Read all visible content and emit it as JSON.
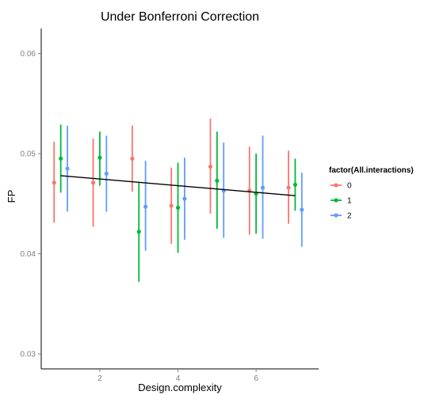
{
  "chart_data": {
    "type": "scatter",
    "title": "Under Bonferroni Correction",
    "xlabel": "Design.complexity",
    "ylabel": "FP",
    "xlim": [
      0.5,
      7.6
    ],
    "ylim": [
      0.0285,
      0.0625
    ],
    "x_ticks": [
      2,
      4,
      6
    ],
    "x_tick_labels": [
      "2",
      "4",
      "6"
    ],
    "y_ticks": [
      0.03,
      0.04,
      0.05,
      0.06
    ],
    "y_tick_labels": [
      "0.03",
      "0.04",
      "0.05",
      "0.06"
    ],
    "grid": false,
    "legend": {
      "title": "factor(All.interactions)",
      "placement": "right",
      "entries": [
        "0",
        "1",
        "2"
      ]
    },
    "series": [
      {
        "name": "0",
        "color": "#F8766D",
        "points": [
          {
            "x": 1,
            "y": 0.0471,
            "lo": 0.0431,
            "hi": 0.0512
          },
          {
            "x": 2,
            "y": 0.0471,
            "lo": 0.0427,
            "hi": 0.0515
          },
          {
            "x": 3,
            "y": 0.0495,
            "lo": 0.0462,
            "hi": 0.0528
          },
          {
            "x": 4,
            "y": 0.0448,
            "lo": 0.041,
            "hi": 0.0486
          },
          {
            "x": 5,
            "y": 0.0487,
            "lo": 0.044,
            "hi": 0.0535
          },
          {
            "x": 6,
            "y": 0.0463,
            "lo": 0.0419,
            "hi": 0.0507
          },
          {
            "x": 7,
            "y": 0.0466,
            "lo": 0.043,
            "hi": 0.0503
          }
        ]
      },
      {
        "name": "1",
        "color": "#00BA38",
        "points": [
          {
            "x": 1,
            "y": 0.0495,
            "lo": 0.0461,
            "hi": 0.0529
          },
          {
            "x": 2,
            "y": 0.0496,
            "lo": 0.0468,
            "hi": 0.0522
          },
          {
            "x": 3,
            "y": 0.0422,
            "lo": 0.0372,
            "hi": 0.0471
          },
          {
            "x": 4,
            "y": 0.0446,
            "lo": 0.0401,
            "hi": 0.0491
          },
          {
            "x": 5,
            "y": 0.0473,
            "lo": 0.0425,
            "hi": 0.0522
          },
          {
            "x": 6,
            "y": 0.046,
            "lo": 0.042,
            "hi": 0.05
          },
          {
            "x": 7,
            "y": 0.0469,
            "lo": 0.0443,
            "hi": 0.0495
          }
        ]
      },
      {
        "name": "2",
        "color": "#619CFF",
        "points": [
          {
            "x": 1,
            "y": 0.0485,
            "lo": 0.0442,
            "hi": 0.0528
          },
          {
            "x": 2,
            "y": 0.048,
            "lo": 0.0442,
            "hi": 0.0518
          },
          {
            "x": 3,
            "y": 0.0447,
            "lo": 0.0403,
            "hi": 0.0493
          },
          {
            "x": 4,
            "y": 0.0455,
            "lo": 0.0414,
            "hi": 0.0496
          },
          {
            "x": 5,
            "y": 0.0463,
            "lo": 0.0416,
            "hi": 0.0511
          },
          {
            "x": 6,
            "y": 0.0466,
            "lo": 0.0415,
            "hi": 0.0518
          },
          {
            "x": 7,
            "y": 0.0444,
            "lo": 0.0407,
            "hi": 0.0481
          }
        ]
      }
    ],
    "trend_line": {
      "color": "#000000",
      "x": [
        1,
        7
      ],
      "y": [
        0.0478,
        0.0458
      ]
    }
  }
}
